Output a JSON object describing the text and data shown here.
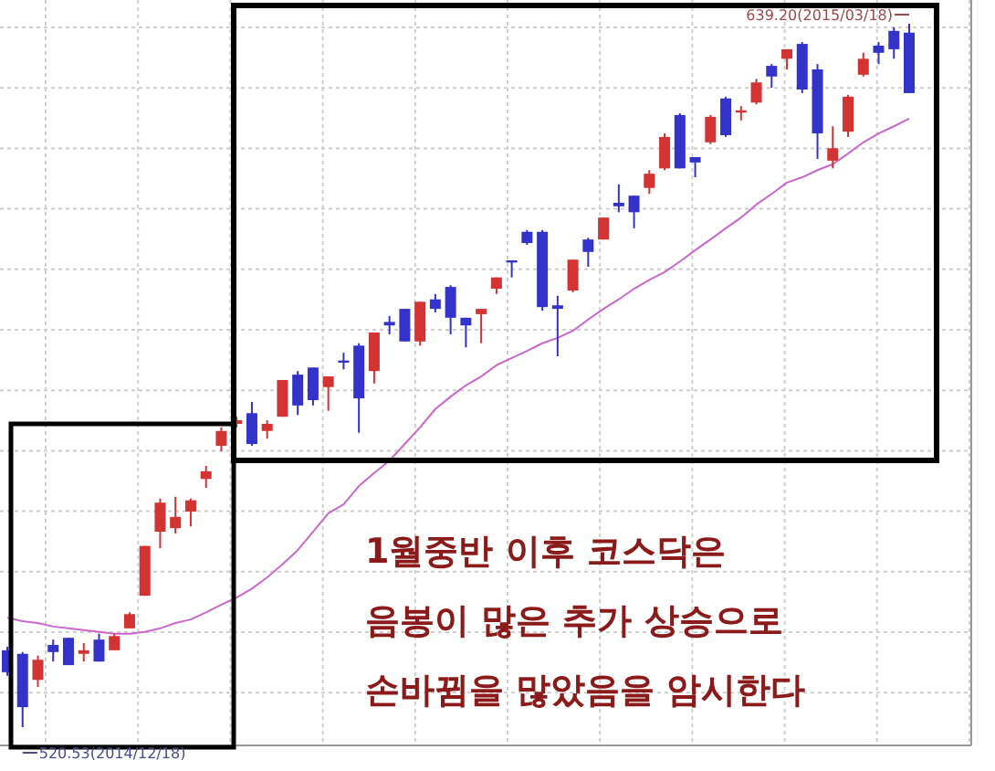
{
  "chart_data": {
    "type": "candlestick",
    "grid": true,
    "categories": [
      null,
      null,
      null,
      null,
      null,
      null,
      null,
      null,
      null,
      null,
      null,
      null,
      null,
      null,
      null,
      null,
      null,
      null,
      null,
      null,
      null,
      null,
      null,
      null,
      null,
      null,
      null,
      null,
      null,
      null,
      null,
      null,
      null,
      null,
      null,
      null,
      null,
      null,
      null,
      null,
      null,
      null,
      null,
      null,
      null,
      null,
      null,
      null,
      null,
      null,
      null,
      null,
      null,
      null,
      null,
      null,
      null,
      null,
      null,
      null
    ],
    "ohlc": [
      [
        533.5,
        534.1,
        529.2,
        529.8
      ],
      [
        532.9,
        533.2,
        520.53,
        523.9
      ],
      [
        528.5,
        532.6,
        527.3,
        531.9
      ],
      [
        534.4,
        535.3,
        531.6,
        533.2
      ],
      [
        535.6,
        535.6,
        531.0,
        531.0
      ],
      [
        532.9,
        534.7,
        531.6,
        533.5
      ],
      [
        535.3,
        536.3,
        531.6,
        531.6
      ],
      [
        533.5,
        536.3,
        533.5,
        535.9
      ],
      [
        537.2,
        539.9,
        537.2,
        539.6
      ],
      [
        542.7,
        551.1,
        542.7,
        551.1
      ],
      [
        553.5,
        559.1,
        550.7,
        558.4
      ],
      [
        554.1,
        559.4,
        553.2,
        556.0
      ],
      [
        556.9,
        559.1,
        554.4,
        558.8
      ],
      [
        562.4,
        564.6,
        560.9,
        563.7
      ],
      [
        568.0,
        571.1,
        567.1,
        570.5
      ],
      [
        571.7,
        572.9,
        571.1,
        572.3
      ],
      [
        573.5,
        575.4,
        568.0,
        568.3
      ],
      [
        570.5,
        572.3,
        569.2,
        571.7
      ],
      [
        572.9,
        579.1,
        572.9,
        579.1
      ],
      [
        580.0,
        580.6,
        573.2,
        574.8
      ],
      [
        581.2,
        581.2,
        574.8,
        575.7
      ],
      [
        577.9,
        579.7,
        573.9,
        579.7
      ],
      [
        582.2,
        583.7,
        580.9,
        582.2
      ],
      [
        584.9,
        585.3,
        570.2,
        576.0
      ],
      [
        580.6,
        587.1,
        578.5,
        587.1
      ],
      [
        588.9,
        589.9,
        586.8,
        588.3
      ],
      [
        591.1,
        591.1,
        585.6,
        585.6
      ],
      [
        585.6,
        592.3,
        584.9,
        592.3
      ],
      [
        592.7,
        593.6,
        590.5,
        591.1
      ],
      [
        594.8,
        595.1,
        586.8,
        589.6
      ],
      [
        589.6,
        589.6,
        584.6,
        588.3
      ],
      [
        590.2,
        591.1,
        585.3,
        591.1
      ],
      [
        594.5,
        596.4,
        593.6,
        596.4
      ],
      [
        599.1,
        599.1,
        596.4,
        599.1
      ],
      [
        604.1,
        604.4,
        601.9,
        602.2
      ],
      [
        604.1,
        604.4,
        590.8,
        591.4
      ],
      [
        591.7,
        593.3,
        583.1,
        591.1
      ],
      [
        594.2,
        599.4,
        593.9,
        599.4
      ],
      [
        602.8,
        603.1,
        598.2,
        600.7
      ],
      [
        602.8,
        606.5,
        602.8,
        606.5
      ],
      [
        609.0,
        612.1,
        607.4,
        608.4
      ],
      [
        610.2,
        610.2,
        604.7,
        607.4
      ],
      [
        611.5,
        614.5,
        610.5,
        613.9
      ],
      [
        614.8,
        620.7,
        614.5,
        620.1
      ],
      [
        623.8,
        624.1,
        614.8,
        614.8
      ],
      [
        616.7,
        616.7,
        613.3,
        615.8
      ],
      [
        619.2,
        623.8,
        618.9,
        623.5
      ],
      [
        626.6,
        626.9,
        620.1,
        620.4
      ],
      [
        624.4,
        625.3,
        622.9,
        624.4
      ],
      [
        625.9,
        629.9,
        625.6,
        629.3
      ],
      [
        632.1,
        632.4,
        628.4,
        630.3
      ],
      [
        633.3,
        634.9,
        631.5,
        634.9
      ],
      [
        635.8,
        636.1,
        627.5,
        628.1
      ],
      [
        631.5,
        632.4,
        616.4,
        620.7
      ],
      [
        616.1,
        621.9,
        614.8,
        618.2
      ],
      [
        621.0,
        627.2,
        620.1,
        626.9
      ],
      [
        630.6,
        634.3,
        630.3,
        633.3
      ],
      [
        635.5,
        636.1,
        632.4,
        634.3
      ],
      [
        638.0,
        638.6,
        633.3,
        634.9
      ],
      [
        637.7,
        639.2,
        627.5,
        627.5
      ]
    ],
    "colors": [
      "#3333cc",
      "#3333cc",
      "#d33333",
      "#3333cc",
      "#3333cc",
      "#d33333",
      "#3333cc",
      "#d33333",
      "#d33333",
      "#d33333",
      "#d33333",
      "#d33333",
      "#d33333",
      "#d33333",
      "#d33333",
      "#d33333",
      "#3333cc",
      "#d33333",
      "#d33333",
      "#3333cc",
      "#3333cc",
      "#d33333",
      "#3333cc",
      "#3333cc",
      "#d33333",
      "#3333cc",
      "#3333cc",
      "#d33333",
      "#3333cc",
      "#3333cc",
      "#3333cc",
      "#d33333",
      "#d33333",
      "#3333cc",
      "#3333cc",
      "#3333cc",
      "#3333cc",
      "#d33333",
      "#3333cc",
      "#d33333",
      "#3333cc",
      "#3333cc",
      "#d33333",
      "#d33333",
      "#3333cc",
      "#3333cc",
      "#d33333",
      "#3333cc",
      "#d33333",
      "#d33333",
      "#3333cc",
      "#d33333",
      "#3333cc",
      "#3333cc",
      "#d33333",
      "#d33333",
      "#d33333",
      "#3333cc",
      "#3333cc",
      "#3333cc"
    ],
    "series": [
      {
        "type": "line",
        "color": "#cc66cc",
        "values": [
          539.0,
          538.4,
          538.1,
          537.5,
          537.2,
          536.9,
          536.6,
          536.3,
          536.3,
          536.6,
          537.2,
          538.1,
          538.7,
          539.9,
          541.2,
          542.4,
          543.9,
          545.8,
          548.0,
          550.4,
          553.5,
          556.6,
          558.1,
          561.2,
          563.4,
          565.5,
          568.3,
          571.1,
          574.2,
          576.3,
          578.2,
          579.7,
          581.6,
          582.8,
          584.0,
          585.3,
          586.2,
          587.4,
          589.3,
          591.1,
          592.7,
          594.5,
          596.0,
          597.3,
          599.1,
          601.0,
          602.8,
          604.7,
          606.5,
          608.7,
          610.5,
          612.4,
          613.3,
          614.5,
          615.5,
          617.3,
          619.2,
          620.7,
          621.9,
          623.2
        ]
      }
    ],
    "annotations": [
      "639.20(2015/03/18)",
      "520.53(2014/12/18)",
      "1월중반 이후 코스닥은",
      "음봉이 많은 추가 상승으로",
      "손바뀜을 많았음을 암시한다"
    ]
  }
}
